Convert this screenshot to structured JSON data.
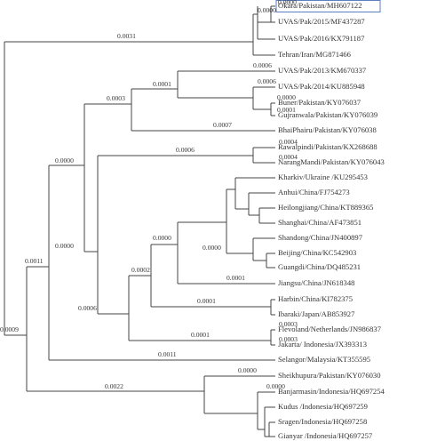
{
  "leaves": [
    "Okara/Pakistan/MH607122",
    "UVAS/Pak/2015/MF437287",
    "UVAS/Pak/2016/KX791187",
    "Tehran/Iran/MG871466",
    "UVAS/Pak/2013/KM670337",
    "UVAS/Pak/2014/KU885948",
    "Buner/Pakistan/KY076037",
    "Gujranwala/Pakistan/KY076039",
    "BhaiPhairu/Pakistan/KY076038",
    "Rawalpindi/Pakistan/KX268688",
    "NarangMandi/Pakistan/KY076043",
    "Kharkiv/Ukraine /KU295453",
    "Anhui/China/FJ754273",
    "Heilongjiang/China/KT889365",
    "Shanghai/China/AF473851",
    "Shandong/China/JN400897",
    "Beijing/China/KC542903",
    "Guangdi/China/DQ485231",
    "Jiangsu/China/JN618348",
    "Harbin/China/KI782375",
    "Ibaraki/Japan/AB853927",
    "Flevoland/Netherlands/JN986837",
    "Jakarta/ Indonesia/JX393313",
    "Selangor/Malaysia/KT355595",
    "Sheikhupura/Pakistan/KY076030",
    "Banjarmasin/Indonesia/HQ697254",
    "Kudus /Indonesia/HQ697259",
    "Sragen/Indonesia/HQ697258",
    "Gianyar /Indonesia/HQ697257"
  ],
  "branch_labels": [
    "0.0000",
    "0.0000",
    "0.0031",
    "0.0006",
    "0.0001",
    "0.0006",
    "0.0000",
    "0.0001",
    "0.0003",
    "0.0007",
    "0.0004",
    "0.0006",
    "0.0004",
    "0.0000",
    "0.0000",
    "0.0000",
    "0.0000",
    "0.0001",
    "0.0002",
    "0.0001",
    "0.0006",
    "0.0011",
    "0.0003",
    "0.0003",
    "0.0001",
    "0.0011",
    "0.0009",
    "0.0000",
    "0.0022",
    "0.0000"
  ]
}
